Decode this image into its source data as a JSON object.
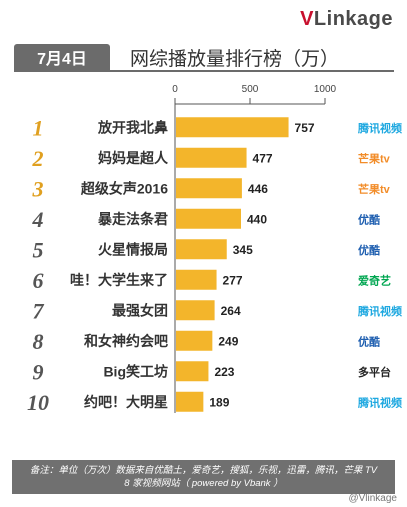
{
  "header": {
    "brand_prefix": "V",
    "brand_rest": "Linkage",
    "date": "7月4日",
    "title": "网综播放量排行榜（万）"
  },
  "chart_data": {
    "type": "bar",
    "orientation": "horizontal",
    "title": "网综播放量排行榜（万）",
    "xlim": [
      0,
      1000
    ],
    "xticks": [
      0,
      500,
      1000
    ],
    "bar_color": "#f3b52b",
    "ranks": [
      "1",
      "2",
      "3",
      "4",
      "5",
      "6",
      "7",
      "8",
      "9",
      "10"
    ],
    "categories": [
      "放开我北鼻",
      "妈妈是超人",
      "超级女声2016",
      "暴走法条君",
      "火星情报局",
      "哇！大学生来了",
      "最强女团",
      "和女神约会吧",
      "Big笑工坊",
      "约吧！大明星"
    ],
    "values": [
      757,
      477,
      446,
      440,
      345,
      277,
      264,
      249,
      223,
      189
    ],
    "platforms": [
      "腾讯视频",
      "芒果tv",
      "芒果tv",
      "优酷",
      "优酷",
      "爱奇艺",
      "腾讯视频",
      "优酷",
      "多平台",
      "腾讯视频"
    ]
  },
  "footer": {
    "line1": "备注：单位（万次）数据来自优酷土，爱奇艺，搜狐，乐视，迅雷，腾讯，芒果 TV",
    "line2": "8 家视频网站（ powered by Vbank ）"
  },
  "watermark": "@Vlinkage"
}
